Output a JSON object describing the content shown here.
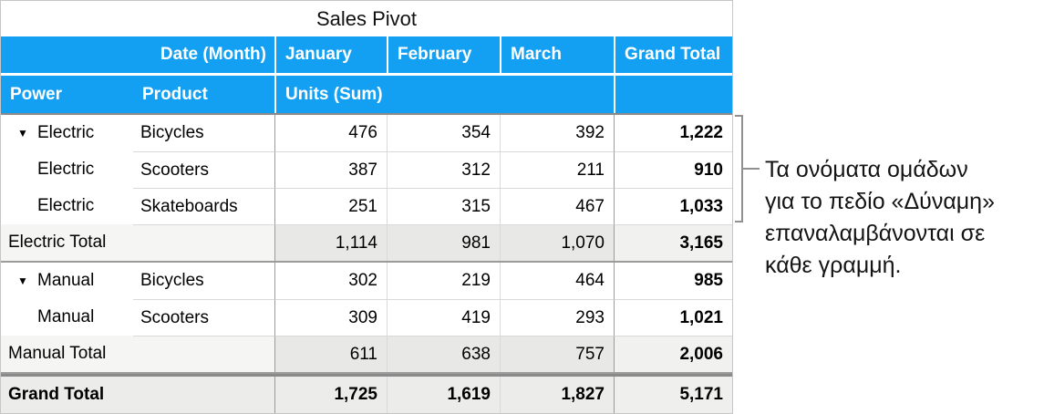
{
  "title": "Sales Pivot",
  "header": {
    "date_month": "Date (Month)",
    "months": [
      "January",
      "February",
      "March"
    ],
    "grand_total": "Grand Total",
    "power": "Power",
    "product": "Product",
    "units": "Units (Sum)"
  },
  "icons": {
    "disclosure": "▼"
  },
  "rows": [
    {
      "power": "Electric",
      "product": "Bicycles",
      "jan": "476",
      "feb": "354",
      "mar": "392",
      "total": "1,222"
    },
    {
      "power": "Electric",
      "product": "Scooters",
      "jan": "387",
      "feb": "312",
      "mar": "211",
      "total": "910"
    },
    {
      "power": "Electric",
      "product": "Skateboards",
      "jan": "251",
      "feb": "315",
      "mar": "467",
      "total": "1,033"
    },
    {
      "label": "Electric Total",
      "jan": "1,114",
      "feb": "981",
      "mar": "1,070",
      "total": "3,165"
    },
    {
      "power": "Manual",
      "product": "Bicycles",
      "jan": "302",
      "feb": "219",
      "mar": "464",
      "total": "985"
    },
    {
      "power": "Manual",
      "product": "Scooters",
      "jan": "309",
      "feb": "419",
      "mar": "293",
      "total": "1,021"
    },
    {
      "label": "Manual Total",
      "jan": "611",
      "feb": "638",
      "mar": "757",
      "total": "2,006"
    },
    {
      "label": "Grand Total",
      "jan": "1,725",
      "feb": "1,619",
      "mar": "1,827",
      "total": "5,171"
    }
  ],
  "callout": {
    "text": "Τα ονόματα ομάδων για το πεδίο «Δύναμη» επαναλαμβάνονται σε κάθε γραμμή.",
    "lines": [
      "Τα ονόματα ομάδων",
      "για το πεδίο «Δύναμη»",
      "επαναλαμβάνονται σε",
      "κάθε γραμμή."
    ]
  },
  "colors": {
    "header_blue": "#14a0f2",
    "subtotal_value_bg": "#e8e8e6",
    "subtotal_label_bg": "#f5f5f3",
    "grand_row_bg": "#ececea",
    "dark_grid": "#9b9b9b",
    "light_grid": "#d9d9d9",
    "bracket_gray": "#909090"
  }
}
